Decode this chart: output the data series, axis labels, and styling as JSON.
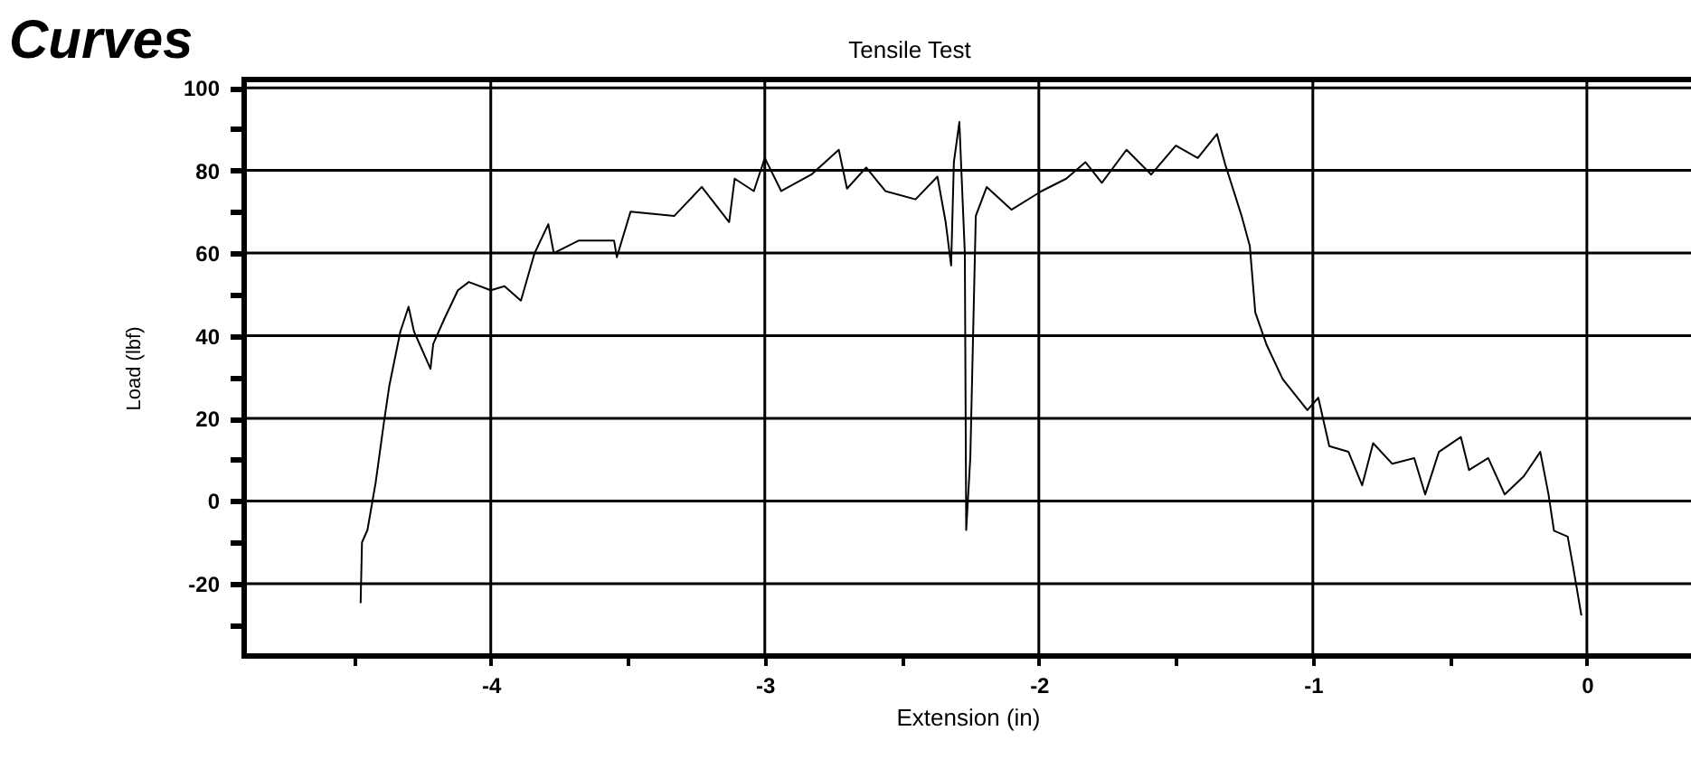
{
  "chart_data": {
    "type": "line",
    "title": "Tensile Test",
    "xlabel": "Extension (in)",
    "ylabel": "Load (lbf)",
    "annotations": [
      "Curves"
    ],
    "x": [
      -4.475,
      -4.47,
      -4.45,
      -4.42,
      -4.39,
      -4.37,
      -4.33,
      -4.3,
      -4.28,
      -4.22,
      -4.21,
      -4.17,
      -4.12,
      -4.08,
      -4.0,
      -3.95,
      -3.89,
      -3.84,
      -3.79,
      -3.77,
      -3.68,
      -3.55,
      -3.54,
      -3.49,
      -3.33,
      -3.23,
      -3.13,
      -3.11,
      -3.04,
      -3.0,
      -2.94,
      -2.83,
      -2.73,
      -2.7,
      -2.63,
      -2.56,
      -2.45,
      -2.37,
      -2.34,
      -2.32,
      -2.31,
      -2.29,
      -2.27,
      -2.265,
      -2.25,
      -2.23,
      -2.19,
      -2.1,
      -1.99,
      -1.9,
      -1.83,
      -1.77,
      -1.68,
      -1.59,
      -1.5,
      -1.42,
      -1.35,
      -1.32,
      -1.26,
      -1.23,
      -1.21,
      -1.17,
      -1.11,
      -1.02,
      -0.98,
      -0.94,
      -0.87,
      -0.82,
      -0.78,
      -0.71,
      -0.63,
      -0.59,
      -0.54,
      -0.46,
      -0.43,
      -0.36,
      -0.3,
      -0.23,
      -0.17,
      -0.14,
      -0.12,
      -0.07,
      -0.05,
      -0.02
    ],
    "series": [
      {
        "color": "#000000",
        "values": [
          -24.7,
          -10,
          -7,
          4.5,
          19,
          28,
          41,
          47,
          41,
          32,
          38,
          44,
          51,
          53,
          51,
          52,
          48.5,
          60,
          67,
          60,
          63,
          63,
          59,
          70,
          69,
          76,
          67.5,
          78,
          75,
          83,
          75,
          79,
          85,
          75.6,
          80.7,
          75,
          73,
          78.5,
          67.5,
          57,
          82,
          91.7,
          60,
          -7,
          10.5,
          69,
          76,
          70.5,
          75,
          78,
          82,
          77,
          85,
          79,
          86,
          83,
          88.8,
          81.5,
          69,
          61.7,
          45.6,
          38,
          29.5,
          22,
          25,
          13.3,
          11.9,
          3.8,
          14,
          9,
          10.4,
          1.6,
          11.9,
          15.5,
          7.5,
          10.4,
          1.6,
          6,
          11.9,
          1.6,
          -7.2,
          -8.6,
          -16,
          -27.7
        ]
      }
    ],
    "xlim": [
      -4.9,
      0.38
    ],
    "ylim": [
      -37.5,
      102
    ],
    "xticks": [
      {
        "value": -4.5,
        "label": null
      },
      -4,
      {
        "value": -3.5,
        "label": null
      },
      -3,
      {
        "value": -2.5,
        "label": null
      },
      -2,
      {
        "value": -1.5,
        "label": null
      },
      -1,
      {
        "value": -0.5,
        "label": null
      },
      0
    ],
    "yticks": [
      {
        "value": -30,
        "label": null
      },
      -20,
      {
        "value": -10,
        "label": null
      },
      0,
      {
        "value": 10,
        "label": null
      },
      20,
      {
        "value": 30,
        "label": null
      },
      40,
      {
        "value": 50,
        "label": null
      },
      60,
      {
        "value": 70,
        "label": null
      },
      80,
      {
        "value": 90,
        "label": null
      },
      100
    ],
    "grid": true,
    "marker": "none",
    "line_style": "solid"
  }
}
